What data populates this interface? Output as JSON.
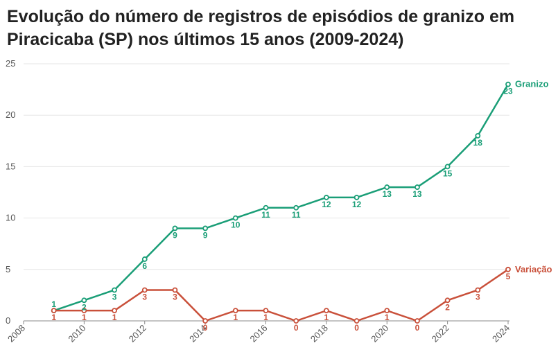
{
  "chart_data": {
    "type": "line",
    "title": "Evolução do número de registros de episódios de granizo em Piracicaba (SP) nos últimos 15 anos (2009-2024)",
    "xlabel": "",
    "ylabel": "",
    "x": [
      2009,
      2010,
      2011,
      2012,
      2013,
      2014,
      2015,
      2016,
      2017,
      2018,
      2019,
      2020,
      2021,
      2022,
      2023,
      2024
    ],
    "x_ticks": [
      "2008",
      "2010",
      "2012",
      "2014",
      "2016",
      "2018",
      "2020",
      "2022",
      "2024"
    ],
    "xlim": [
      2008,
      2024
    ],
    "y_ticks": [
      "0",
      "5",
      "10",
      "15",
      "20",
      "25"
    ],
    "ylim": [
      0,
      25
    ],
    "grid": true,
    "series": [
      {
        "name": "Granizo",
        "color": "#1a9e77",
        "values": [
          1,
          2,
          3,
          6,
          9,
          9,
          10,
          11,
          11,
          12,
          12,
          13,
          13,
          15,
          18,
          23
        ],
        "labels": [
          "1",
          "2",
          "3",
          "6",
          "9",
          "9",
          "10",
          "11",
          "11",
          "12",
          "12",
          "13",
          "13",
          "15",
          "18",
          "23"
        ]
      },
      {
        "name": "Variação",
        "color": "#c9503a",
        "values": [
          1,
          1,
          1,
          3,
          3,
          0,
          1,
          1,
          0,
          1,
          0,
          1,
          0,
          2,
          3,
          5
        ],
        "labels": [
          "1",
          "1",
          "1",
          "3",
          "3",
          "0",
          "1",
          "1",
          "0",
          "1",
          "0",
          "1",
          "0",
          "2",
          "3",
          "5"
        ]
      }
    ]
  }
}
